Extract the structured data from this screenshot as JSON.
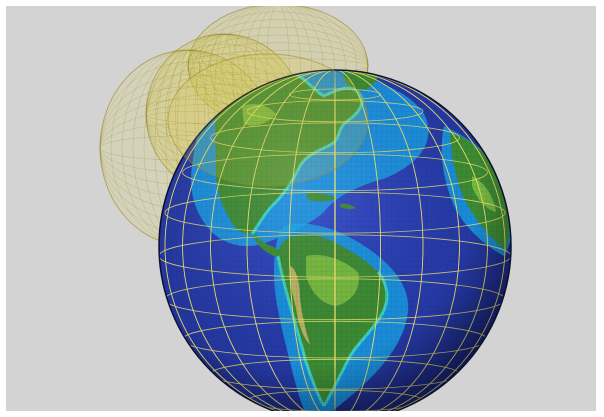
{
  "scene": {
    "background_color": "#d3d3d3",
    "frame_color": "#ffffff",
    "ocean_deep": "#1a2a8a",
    "ocean_mid": "#2f48c8",
    "ocean_shelf": "#16a8e8",
    "coast_color": "#3ee0d0",
    "land_low": "#3c8a32",
    "land_high": "#7ec040",
    "desert": "#c8b468",
    "grid_color": "#e6dc6a",
    "shell_color": "#d8c840"
  }
}
